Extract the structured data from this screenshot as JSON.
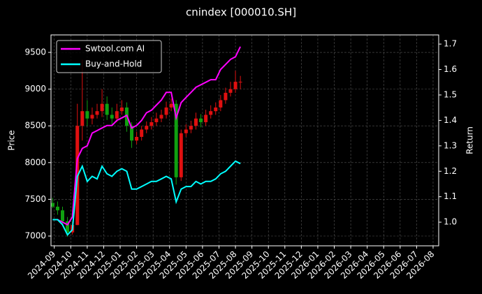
{
  "chart_data": {
    "type": "candlestick",
    "title": "cnindex [000010.SH]",
    "ylabel": "Price",
    "y2label": "Return",
    "x": [
      -0.1,
      0.2,
      0.5,
      0.8,
      1.1,
      1.4,
      1.7,
      2.0,
      2.3,
      2.6,
      2.9,
      3.2,
      3.5,
      3.8,
      4.1,
      4.4,
      4.7,
      5.0,
      5.3,
      5.6,
      5.9,
      6.2,
      6.5,
      6.8,
      7.1,
      7.4,
      7.7,
      8.0,
      8.3,
      8.6,
      8.9,
      9.2,
      9.5,
      9.8,
      10.1,
      10.4,
      10.7,
      11.0,
      11.3
    ],
    "open": [
      7450,
      7400,
      7350,
      7200,
      7050,
      7150,
      8500,
      8700,
      8600,
      8650,
      8700,
      8800,
      8650,
      8600,
      8700,
      8750,
      8500,
      8300,
      8350,
      8450,
      8500,
      8550,
      8600,
      8650,
      8750,
      8800,
      7800,
      8400,
      8450,
      8500,
      8600,
      8550,
      8650,
      8700,
      8750,
      8850,
      8950,
      9000,
      9100
    ],
    "high": [
      7520,
      7470,
      7400,
      7260,
      7200,
      8800,
      9400,
      8850,
      8750,
      8800,
      9000,
      8900,
      8750,
      8800,
      8850,
      8820,
      8550,
      8420,
      8500,
      8560,
      8620,
      8680,
      8720,
      8830,
      8870,
      8850,
      8450,
      8520,
      8570,
      8680,
      8660,
      8720,
      8780,
      8820,
      8920,
      9020,
      9100,
      9250,
      9180
    ],
    "low": [
      7380,
      7290,
      7150,
      6990,
      7020,
      7150,
      8300,
      8500,
      8520,
      8600,
      8620,
      8580,
      8520,
      8550,
      8650,
      8420,
      8200,
      8250,
      8300,
      8400,
      8450,
      8500,
      8550,
      8600,
      8700,
      7700,
      7750,
      8350,
      8400,
      8450,
      8480,
      8500,
      8600,
      8650,
      8700,
      8800,
      8900,
      8950,
      9000
    ],
    "close": [
      7400,
      7350,
      7200,
      7050,
      7150,
      8500,
      8700,
      8600,
      8650,
      8700,
      8800,
      8650,
      8600,
      8700,
      8750,
      8500,
      8300,
      8350,
      8450,
      8500,
      8550,
      8600,
      8650,
      8750,
      8800,
      7800,
      8400,
      8450,
      8500,
      8600,
      8550,
      8650,
      8700,
      8750,
      8850,
      8950,
      9000,
      9100,
      9100
    ],
    "up_color": "#e01010",
    "down_color": "#10a010",
    "series": [
      {
        "name": "Swtool.com AI",
        "color": "#ff00ff",
        "axis": "y2",
        "values": [
          1.01,
          1.01,
          1.0,
          0.99,
          1.02,
          1.25,
          1.29,
          1.3,
          1.35,
          1.36,
          1.37,
          1.38,
          1.38,
          1.4,
          1.41,
          1.42,
          1.37,
          1.38,
          1.4,
          1.43,
          1.44,
          1.46,
          1.48,
          1.51,
          1.51,
          1.41,
          1.47,
          1.49,
          1.51,
          1.53,
          1.54,
          1.55,
          1.56,
          1.56,
          1.6,
          1.62,
          1.64,
          1.65,
          1.69
        ]
      },
      {
        "name": "Buy-and-Hold",
        "color": "#00ffff",
        "axis": "y2",
        "values": [
          1.01,
          1.01,
          0.99,
          0.95,
          0.97,
          1.18,
          1.22,
          1.16,
          1.18,
          1.17,
          1.22,
          1.19,
          1.18,
          1.2,
          1.21,
          1.2,
          1.13,
          1.13,
          1.14,
          1.15,
          1.16,
          1.16,
          1.17,
          1.18,
          1.17,
          1.08,
          1.13,
          1.14,
          1.14,
          1.16,
          1.15,
          1.16,
          1.16,
          1.17,
          1.19,
          1.2,
          1.22,
          1.24,
          1.23
        ]
      }
    ],
    "xlim": [
      -0.2,
      23.34
    ],
    "xticks": [
      {
        "value": 0,
        "label": "2024-09"
      },
      {
        "value": 1,
        "label": "2024-10"
      },
      {
        "value": 2,
        "label": "2024-11"
      },
      {
        "value": 3,
        "label": "2024-12"
      },
      {
        "value": 4,
        "label": "2025-01"
      },
      {
        "value": 5,
        "label": "2025-02"
      },
      {
        "value": 6,
        "label": "2025-03"
      },
      {
        "value": 7,
        "label": "2025-04"
      },
      {
        "value": 8,
        "label": "2025-05"
      },
      {
        "value": 9,
        "label": "2025-06"
      },
      {
        "value": 10,
        "label": "2025-07"
      },
      {
        "value": 11,
        "label": "2025-08"
      },
      {
        "value": 12,
        "label": "2025-09"
      },
      {
        "value": 13,
        "label": "2025-10"
      },
      {
        "value": 14,
        "label": "2025-11"
      },
      {
        "value": 15,
        "label": "2025-12"
      },
      {
        "value": 16,
        "label": "2026-01"
      },
      {
        "value": 17,
        "label": "2026-02"
      },
      {
        "value": 18,
        "label": "2026-03"
      },
      {
        "value": 19,
        "label": "2026-04"
      },
      {
        "value": 20,
        "label": "2026-05"
      },
      {
        "value": 21,
        "label": "2026-06"
      },
      {
        "value": 22,
        "label": "2026-07"
      },
      {
        "value": 23,
        "label": "2026-08"
      }
    ],
    "ylim": [
      6867,
      9738
    ],
    "yticks": [
      7000,
      7500,
      8000,
      8500,
      9000,
      9500
    ],
    "y2lim": [
      0.907,
      1.736
    ],
    "y2ticks": [
      {
        "value": 1,
        "label": "1.0"
      },
      1.1,
      1.2,
      1.3,
      1.4,
      1.5,
      1.6,
      1.7
    ],
    "grid": true,
    "legend": "upper left"
  }
}
